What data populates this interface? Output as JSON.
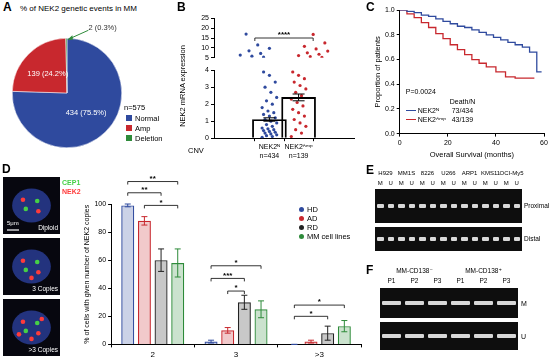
{
  "chart_data": [
    {
      "panel": "A",
      "type": "pie",
      "title": "% of NEK2 genetic events in MM",
      "categories": [
        "Normal",
        "Amp",
        "Deletion"
      ],
      "values": [
        434,
        139,
        2
      ],
      "value_labels": [
        "434 (75.5%)",
        "139 (24.2%)",
        "2 (0.3%)"
      ],
      "data_labels": true,
      "colors": [
        "#2f4a9e",
        "#c8282e",
        "#2e8b3a"
      ],
      "legend": "right",
      "annotations": [
        "n=575"
      ]
    },
    {
      "panel": "B",
      "type": "bar",
      "x_label": "CNV",
      "y_label": "NEK2 mRNA expression",
      "categories": [
        "NEK2ᴺ",
        "NEK2ᴬᵐᵖ"
      ],
      "category_notes": [
        "n=434",
        "n=139"
      ],
      "colors": [
        "#2f4a9e",
        "#c8282e"
      ],
      "values": [
        1.1,
        2.4
      ],
      "errors": [
        0.1,
        0.2
      ],
      "points": [
        [
          0.05,
          0.1,
          0.15,
          0.2,
          0.25,
          0.3,
          0.35,
          0.4,
          0.45,
          0.5,
          0.55,
          0.6,
          0.7,
          0.8,
          0.9,
          1.0,
          1.1,
          1.2,
          1.3,
          1.4,
          1.5,
          1.6,
          1.8,
          2.0,
          2.2,
          2.4,
          2.7,
          3.0,
          3.3,
          3.7,
          3.9,
          5.3,
          5.8,
          6.4,
          7.2,
          8.5,
          9.8,
          11.5,
          17.0
        ],
        [
          0.1,
          0.3,
          0.5,
          0.7,
          0.9,
          1.1,
          1.3,
          1.5,
          1.7,
          1.9,
          2.1,
          2.3,
          2.5,
          2.7,
          2.9,
          3.1,
          3.3,
          3.5,
          3.7,
          3.9,
          5.2,
          5.6,
          6.1,
          6.8,
          7.5,
          8.4,
          9.5,
          10.8,
          12.5,
          16.8
        ]
      ],
      "ylim": [
        0,
        4
      ],
      "yticks": [
        0,
        1,
        2,
        3,
        4
      ],
      "ylim_upper": [
        5,
        25
      ],
      "yticks_upper": [
        5,
        10,
        15,
        20,
        25
      ],
      "significance": {
        "text": "****",
        "from": 0,
        "to": 1,
        "y": 15
      }
    },
    {
      "panel": "C",
      "type": "line",
      "x_label": "Overall Survival (months)",
      "y_label": "Proportion of patients",
      "xlim": [
        0,
        60
      ],
      "xticks": [
        0,
        20,
        40,
        60
      ],
      "ylim": [
        0,
        1
      ],
      "yticks": [
        {
          "value": 0,
          "label": "0.0"
        },
        0.2,
        0.4,
        0.6,
        0.8,
        {
          "value": 1,
          "label": "1.0"
        }
      ],
      "line_style": "step",
      "annotations": [
        "P=0.0024"
      ],
      "legend_title": "Death/N",
      "legend": "bottom-left",
      "series": [
        {
          "name": "NEK2ᴺ",
          "color": "#2f4a9e",
          "deaths": "73/434",
          "x": [
            0,
            3,
            6,
            9,
            12,
            15,
            18,
            21,
            24,
            27,
            30,
            33,
            36,
            39,
            42,
            45,
            48,
            51,
            54,
            57,
            59
          ],
          "values": [
            1,
            0.99,
            0.98,
            0.96,
            0.95,
            0.93,
            0.91,
            0.89,
            0.87,
            0.86,
            0.84,
            0.82,
            0.8,
            0.78,
            0.76,
            0.74,
            0.72,
            0.7,
            0.66,
            0.5,
            0.5
          ]
        },
        {
          "name": "NEK2ᴬᵐᵖ",
          "color": "#c8282e",
          "deaths": "43/139",
          "x": [
            0,
            3,
            6,
            9,
            12,
            15,
            18,
            21,
            24,
            27,
            30,
            33,
            36,
            40,
            44,
            48,
            52,
            56
          ],
          "values": [
            1,
            0.97,
            0.94,
            0.9,
            0.86,
            0.81,
            0.77,
            0.72,
            0.68,
            0.64,
            0.6,
            0.57,
            0.54,
            0.5,
            0.46,
            0.45,
            0.45,
            0.45
          ]
        }
      ]
    },
    {
      "panel": "D",
      "type": "bar",
      "y_label": "% of cells with given number of NEK2 copies",
      "categories": [
        "2",
        "3",
        ">3"
      ],
      "ylim": [
        0,
        100
      ],
      "yticks": [
        0,
        20,
        40,
        60,
        80,
        100
      ],
      "legend": "top-right",
      "series": [
        {
          "name": "HD",
          "color": "#2f4a9e",
          "values": [
            99,
            2,
            0
          ],
          "errors": [
            1,
            1,
            0
          ]
        },
        {
          "name": "AD",
          "color": "#c8282e",
          "values": [
            88,
            10,
            2
          ],
          "errors": [
            3,
            2,
            1
          ]
        },
        {
          "name": "RD",
          "color": "#222222",
          "values": [
            60,
            30,
            8
          ],
          "errors": [
            8,
            5,
            5
          ]
        },
        {
          "name": "MM cell lines",
          "color": "#2e8b3a",
          "values": [
            58,
            25,
            13
          ],
          "errors": [
            10,
            6,
            4
          ]
        }
      ],
      "significance": [
        {
          "text": "**",
          "category": 0,
          "from": 0,
          "to": 3,
          "y": 116
        },
        {
          "text": "**",
          "category": 0,
          "from": 0,
          "to": 2,
          "y": 108
        },
        {
          "text": "*",
          "category": 0,
          "from": 1,
          "to": 3,
          "y": 99
        },
        {
          "text": "*",
          "category": 1,
          "from": 0,
          "to": 3,
          "y": 56
        },
        {
          "text": "***",
          "category": 1,
          "from": 0,
          "to": 2,
          "y": 47
        },
        {
          "text": "*",
          "category": 1,
          "from": 1,
          "to": 2,
          "y": 38
        },
        {
          "text": "*",
          "category": 2,
          "from": 0,
          "to": 3,
          "y": 28
        },
        {
          "text": "*",
          "category": 2,
          "from": 0,
          "to": 2,
          "y": 20
        }
      ]
    }
  ],
  "images": [
    {
      "type": "fish",
      "probes": [
        {
          "name": "CEP1",
          "color": "#46d046"
        },
        {
          "name": "NEK2",
          "color": "#ff3b3b"
        }
      ],
      "cells": [
        {
          "label": "Diploid",
          "signals": [
            2,
            2
          ]
        },
        {
          "label": "3 Copies",
          "signals": [
            2,
            3
          ]
        },
        {
          "label": ">3 Copies",
          "signals": [
            2,
            5
          ]
        }
      ],
      "scale_bar": "5μm"
    },
    {
      "panel": "E",
      "type": "gel",
      "lanes": [
        "H929",
        "MM1S",
        "8226",
        "U266",
        "ARP1",
        "KMS11",
        "OCI-My5"
      ],
      "sub_lanes": [
        "M",
        "U"
      ],
      "rows": [
        "Proximal",
        "Distal"
      ]
    },
    {
      "panel": "F",
      "type": "gel",
      "groups": [
        "MM-CD138⁻",
        "MM-CD138⁺"
      ],
      "lanes": [
        "P1",
        "P2",
        "P3"
      ],
      "rows": [
        "M",
        "U"
      ]
    }
  ]
}
